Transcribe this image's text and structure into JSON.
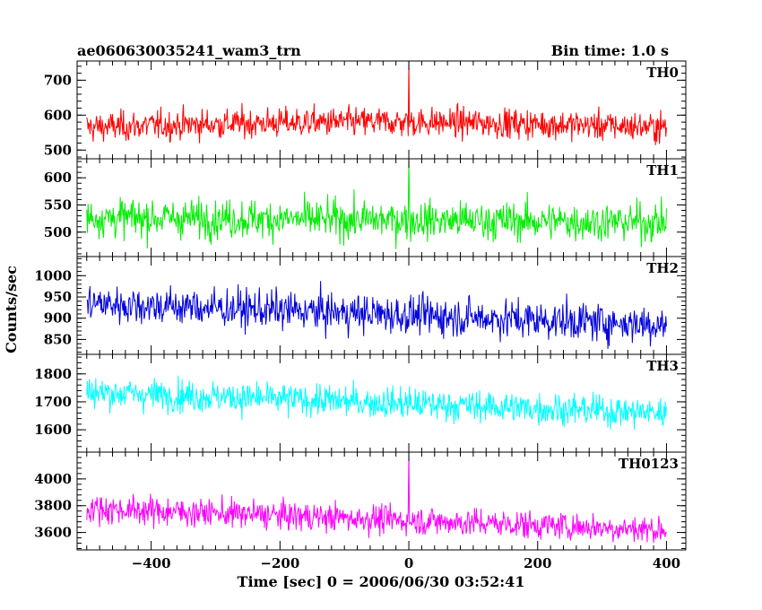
{
  "title": "ae060630035241_wam3_trn",
  "subtitle": "Bin time: 1.0 s",
  "chart_data": {
    "type": "line",
    "title": "ae060630035241_wam3_trn",
    "subtitle": "Bin time: 1.0 s",
    "xlabel": "Time [sec] 0 = 2006/06/30 03:52:41",
    "ylabel": "Counts/sec",
    "xlim": [
      -515,
      430
    ],
    "x_ticks": [
      -400,
      -200,
      0,
      200,
      400
    ],
    "x_range": [
      -500,
      400
    ],
    "panels": [
      {
        "name": "TH0",
        "color": "#ff0000",
        "ylim": [
          475,
          755
        ],
        "y_ticks": [
          500,
          600,
          700
        ],
        "mean_start": 565,
        "mean_end": 565,
        "noise_sd": 30,
        "spike_at_zero": 755,
        "trend_bump": 15
      },
      {
        "name": "TH1",
        "color": "#00ee00",
        "ylim": [
          455,
          635
        ],
        "y_ticks": [
          500,
          550,
          600
        ],
        "mean_start": 527,
        "mean_end": 518,
        "noise_sd": 25,
        "spike_at_zero": 635,
        "trend_bump": 0
      },
      {
        "name": "TH2",
        "color": "#0000dd",
        "ylim": [
          815,
          1045
        ],
        "y_ticks": [
          850,
          900,
          950,
          1000
        ],
        "mean_start": 935,
        "mean_end": 885,
        "noise_sd": 32,
        "spike_at_zero": null,
        "trend_bump": 0
      },
      {
        "name": "TH3",
        "color": "#00ffff",
        "ylim": [
          1520,
          1870
        ],
        "y_ticks": [
          1600,
          1700,
          1800
        ],
        "mean_start": 1735,
        "mean_end": 1660,
        "noise_sd": 40,
        "spike_at_zero": null,
        "trend_bump": 0
      },
      {
        "name": "TH0123",
        "color": "#ff00ff",
        "ylim": [
          3470,
          4200
        ],
        "y_ticks": [
          3600,
          3800,
          4000
        ],
        "mean_start": 3780,
        "mean_end": 3620,
        "noise_sd": 75,
        "spike_at_zero": 4200,
        "trend_bump": 0
      }
    ]
  }
}
